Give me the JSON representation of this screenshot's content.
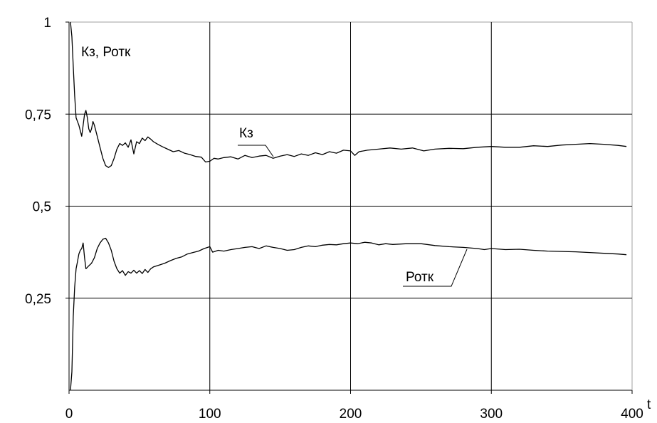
{
  "chart_data": {
    "type": "line",
    "title": "",
    "ylabel": "Кз, Ротк",
    "xlabel": "t",
    "xlim": [
      0,
      400
    ],
    "ylim": [
      0,
      1
    ],
    "grid": true,
    "legend": "none",
    "x_ticks": [
      {
        "value": 0,
        "label": "0"
      },
      {
        "value": 100,
        "label": "100"
      },
      {
        "value": 200,
        "label": "200"
      },
      {
        "value": 300,
        "label": "300"
      },
      {
        "value": 400,
        "label": "400"
      }
    ],
    "y_ticks": [
      {
        "value": 0.25,
        "label": "0,25"
      },
      {
        "value": 0.5,
        "label": "0,5"
      },
      {
        "value": 0.75,
        "label": "0,75"
      },
      {
        "value": 1,
        "label": "1"
      }
    ],
    "series": [
      {
        "name": "Кз",
        "color": "#000000",
        "points": [
          [
            1,
            1.0
          ],
          [
            2,
            0.96
          ],
          [
            3,
            0.88
          ],
          [
            4,
            0.8
          ],
          [
            5,
            0.74
          ],
          [
            7,
            0.72
          ],
          [
            9,
            0.69
          ],
          [
            10,
            0.72
          ],
          [
            11,
            0.75
          ],
          [
            12,
            0.76
          ],
          [
            13,
            0.74
          ],
          [
            14,
            0.71
          ],
          [
            15,
            0.7
          ],
          [
            16,
            0.71
          ],
          [
            17,
            0.73
          ],
          [
            18,
            0.72
          ],
          [
            20,
            0.69
          ],
          [
            22,
            0.66
          ],
          [
            24,
            0.63
          ],
          [
            26,
            0.61
          ],
          [
            28,
            0.605
          ],
          [
            30,
            0.61
          ],
          [
            32,
            0.63
          ],
          [
            34,
            0.655
          ],
          [
            36,
            0.67
          ],
          [
            38,
            0.665
          ],
          [
            40,
            0.672
          ],
          [
            42,
            0.66
          ],
          [
            44,
            0.68
          ],
          [
            46,
            0.642
          ],
          [
            48,
            0.675
          ],
          [
            50,
            0.67
          ],
          [
            52,
            0.685
          ],
          [
            54,
            0.678
          ],
          [
            56,
            0.688
          ],
          [
            58,
            0.682
          ],
          [
            60,
            0.675
          ],
          [
            63,
            0.668
          ],
          [
            66,
            0.662
          ],
          [
            70,
            0.655
          ],
          [
            74,
            0.648
          ],
          [
            78,
            0.651
          ],
          [
            82,
            0.644
          ],
          [
            86,
            0.64
          ],
          [
            90,
            0.635
          ],
          [
            94,
            0.633
          ],
          [
            97,
            0.62
          ],
          [
            100,
            0.622
          ],
          [
            103,
            0.63
          ],
          [
            106,
            0.628
          ],
          [
            110,
            0.632
          ],
          [
            115,
            0.634
          ],
          [
            120,
            0.628
          ],
          [
            125,
            0.638
          ],
          [
            130,
            0.632
          ],
          [
            135,
            0.636
          ],
          [
            140,
            0.638
          ],
          [
            145,
            0.63
          ],
          [
            150,
            0.636
          ],
          [
            155,
            0.64
          ],
          [
            160,
            0.635
          ],
          [
            165,
            0.642
          ],
          [
            170,
            0.638
          ],
          [
            175,
            0.645
          ],
          [
            180,
            0.64
          ],
          [
            185,
            0.648
          ],
          [
            190,
            0.644
          ],
          [
            195,
            0.652
          ],
          [
            200,
            0.65
          ],
          [
            203,
            0.638
          ],
          [
            206,
            0.648
          ],
          [
            212,
            0.652
          ],
          [
            220,
            0.655
          ],
          [
            228,
            0.658
          ],
          [
            236,
            0.655
          ],
          [
            244,
            0.658
          ],
          [
            252,
            0.65
          ],
          [
            260,
            0.655
          ],
          [
            270,
            0.657
          ],
          [
            280,
            0.656
          ],
          [
            290,
            0.66
          ],
          [
            300,
            0.662
          ],
          [
            310,
            0.66
          ],
          [
            320,
            0.66
          ],
          [
            330,
            0.664
          ],
          [
            340,
            0.662
          ],
          [
            350,
            0.666
          ],
          [
            360,
            0.668
          ],
          [
            370,
            0.67
          ],
          [
            380,
            0.668
          ],
          [
            390,
            0.665
          ],
          [
            396,
            0.662
          ]
        ]
      },
      {
        "name": "Ротк",
        "color": "#000000",
        "points": [
          [
            1,
            0.0
          ],
          [
            2,
            0.05
          ],
          [
            3,
            0.2
          ],
          [
            4,
            0.28
          ],
          [
            5,
            0.33
          ],
          [
            6,
            0.35
          ],
          [
            7,
            0.37
          ],
          [
            8,
            0.38
          ],
          [
            9,
            0.385
          ],
          [
            10,
            0.4
          ],
          [
            11,
            0.36
          ],
          [
            12,
            0.33
          ],
          [
            14,
            0.338
          ],
          [
            16,
            0.345
          ],
          [
            18,
            0.36
          ],
          [
            20,
            0.385
          ],
          [
            22,
            0.4
          ],
          [
            24,
            0.41
          ],
          [
            26,
            0.413
          ],
          [
            28,
            0.4
          ],
          [
            30,
            0.38
          ],
          [
            32,
            0.35
          ],
          [
            34,
            0.33
          ],
          [
            36,
            0.318
          ],
          [
            38,
            0.325
          ],
          [
            40,
            0.312
          ],
          [
            42,
            0.322
          ],
          [
            44,
            0.318
          ],
          [
            46,
            0.326
          ],
          [
            48,
            0.318
          ],
          [
            50,
            0.325
          ],
          [
            52,
            0.317
          ],
          [
            54,
            0.328
          ],
          [
            56,
            0.32
          ],
          [
            58,
            0.33
          ],
          [
            60,
            0.335
          ],
          [
            64,
            0.34
          ],
          [
            68,
            0.345
          ],
          [
            72,
            0.352
          ],
          [
            76,
            0.358
          ],
          [
            80,
            0.362
          ],
          [
            84,
            0.37
          ],
          [
            88,
            0.374
          ],
          [
            92,
            0.378
          ],
          [
            96,
            0.385
          ],
          [
            100,
            0.39
          ],
          [
            102,
            0.375
          ],
          [
            106,
            0.38
          ],
          [
            110,
            0.378
          ],
          [
            115,
            0.382
          ],
          [
            120,
            0.385
          ],
          [
            125,
            0.388
          ],
          [
            130,
            0.39
          ],
          [
            135,
            0.385
          ],
          [
            140,
            0.392
          ],
          [
            145,
            0.388
          ],
          [
            150,
            0.385
          ],
          [
            155,
            0.38
          ],
          [
            160,
            0.382
          ],
          [
            165,
            0.388
          ],
          [
            170,
            0.392
          ],
          [
            175,
            0.39
          ],
          [
            180,
            0.394
          ],
          [
            185,
            0.396
          ],
          [
            190,
            0.395
          ],
          [
            195,
            0.398
          ],
          [
            200,
            0.4
          ],
          [
            205,
            0.398
          ],
          [
            210,
            0.402
          ],
          [
            215,
            0.4
          ],
          [
            220,
            0.395
          ],
          [
            225,
            0.398
          ],
          [
            230,
            0.396
          ],
          [
            240,
            0.398
          ],
          [
            250,
            0.398
          ],
          [
            260,
            0.393
          ],
          [
            270,
            0.39
          ],
          [
            280,
            0.388
          ],
          [
            290,
            0.385
          ],
          [
            295,
            0.382
          ],
          [
            300,
            0.385
          ],
          [
            310,
            0.382
          ],
          [
            320,
            0.383
          ],
          [
            330,
            0.38
          ],
          [
            340,
            0.378
          ],
          [
            350,
            0.377
          ],
          [
            360,
            0.376
          ],
          [
            370,
            0.374
          ],
          [
            380,
            0.372
          ],
          [
            390,
            0.37
          ],
          [
            396,
            0.368
          ]
        ]
      }
    ]
  }
}
